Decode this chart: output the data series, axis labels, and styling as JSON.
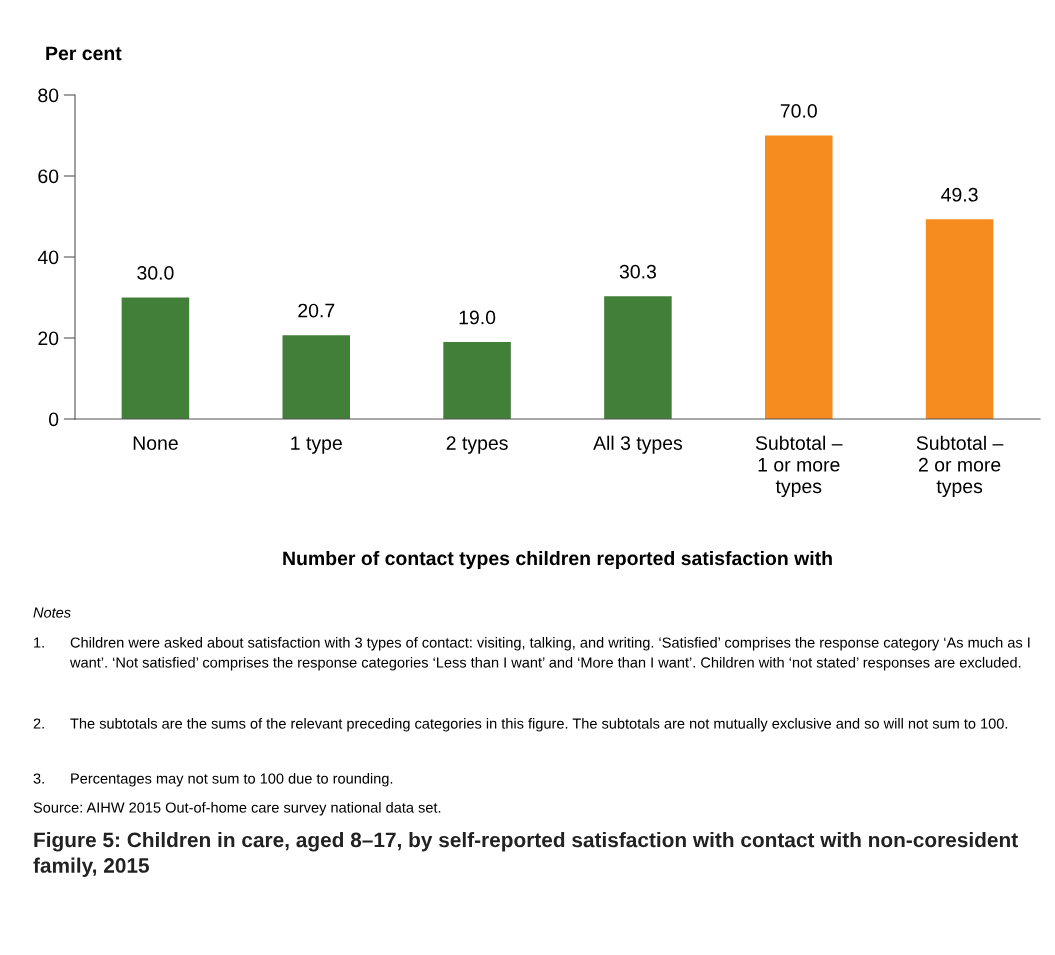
{
  "chart_data": {
    "type": "bar",
    "title": "Figure 5: Children in care, aged 8–17, by self-reported satisfaction with contact with non-coresident family, 2015",
    "ylabel": "Per cent",
    "xlabel": "Number of contact types children reported satisfaction with",
    "categories": [
      "None",
      "1 type",
      "2 types",
      "All 3 types",
      "Subtotal –\n1 or more\ntypes",
      "Subtotal –\n2 or more\ntypes"
    ],
    "values": [
      30.0,
      20.7,
      19.0,
      30.3,
      70.0,
      49.3
    ],
    "value_labels": [
      "30.0",
      "20.7",
      "19.0",
      "30.3",
      "70.0",
      "49.3"
    ],
    "colors": [
      "#42803a",
      "#42803a",
      "#42803a",
      "#42803a",
      "#f68b1f",
      "#f68b1f"
    ],
    "ylim": [
      0,
      80
    ],
    "yticks": [
      0,
      20,
      40,
      60,
      80
    ],
    "grid": false,
    "legend": false,
    "annotations": [
      "Notes",
      "1.\tChildren were asked about satisfaction with 3 types of contact: visiting, talking, and writing. ‘Satisfied’ comprises the response category ‘As much as I want’. ‘Not satisfied’ comprises the response categories ‘Less than I want’ and ‘More than I want’. Children with ‘not stated’ responses are excluded.",
      "2.\tThe subtotals are the sums of the relevant preceding categories in this figure. The subtotals are not mutually exclusive and so will not sum to 100.",
      "3.\tPercentages may not sum to 100 due to rounding.",
      "Source: AIHW 2015 Out-of-home care survey national data set."
    ]
  }
}
